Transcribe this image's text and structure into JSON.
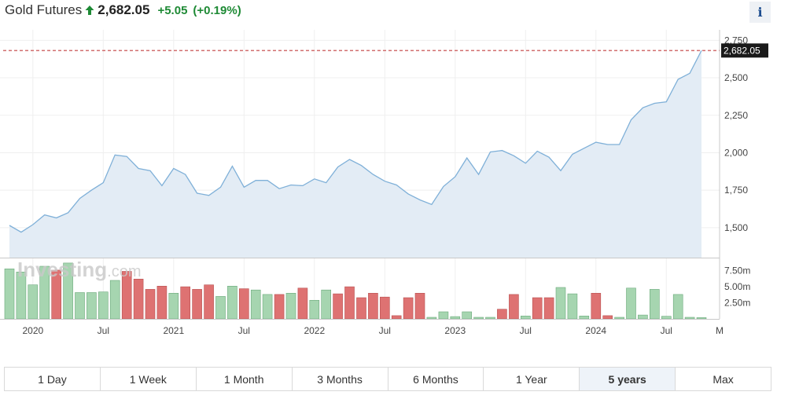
{
  "header": {
    "title": "Gold Futures",
    "price": "2,682.05",
    "change": "+5.05",
    "change_pct": "(+0.19%)",
    "info_icon_text": "i",
    "colors": {
      "up": "#1e8a35",
      "text": "#333333"
    }
  },
  "watermark": "Investing",
  "watermark_suffix": ".com",
  "ranges": [
    "1 Day",
    "1 Week",
    "1 Month",
    "3 Months",
    "6 Months",
    "1 Year",
    "5 years",
    "Max"
  ],
  "active_range": "5 years",
  "chart_data": [
    {
      "type": "area",
      "name": "price",
      "current_price": 2682.05,
      "current_price_label": "2,682.05",
      "ylim": [
        1300,
        2820
      ],
      "yticks": [
        1500,
        1750,
        2000,
        2250,
        2500,
        2750
      ],
      "ytick_labels": [
        "1,500",
        "1,750",
        "2,000",
        "2,250",
        "2,500",
        "2,750"
      ],
      "x_start": "2019-11",
      "x_end": "2024-10",
      "x_tick_labels": [
        {
          "label": "2020",
          "x": "2020-01"
        },
        {
          "label": "Jul",
          "x": "2020-07"
        },
        {
          "label": "2021",
          "x": "2021-01"
        },
        {
          "label": "Jul",
          "x": "2021-07"
        },
        {
          "label": "2022",
          "x": "2022-01"
        },
        {
          "label": "Jul",
          "x": "2022-07"
        },
        {
          "label": "2023",
          "x": "2023-01"
        },
        {
          "label": "Jul",
          "x": "2023-07"
        },
        {
          "label": "2024",
          "x": "2024-01"
        },
        {
          "label": "Jul",
          "x": "2024-07"
        },
        {
          "label": "M",
          "x": "2024-10"
        }
      ],
      "dates": [
        "2019-11",
        "2019-12",
        "2020-01",
        "2020-02",
        "2020-03",
        "2020-04",
        "2020-05",
        "2020-06",
        "2020-07",
        "2020-08",
        "2020-09",
        "2020-10",
        "2020-11",
        "2020-12",
        "2021-01",
        "2021-02",
        "2021-03",
        "2021-04",
        "2021-05",
        "2021-06",
        "2021-07",
        "2021-08",
        "2021-09",
        "2021-10",
        "2021-11",
        "2021-12",
        "2022-01",
        "2022-02",
        "2022-03",
        "2022-04",
        "2022-05",
        "2022-06",
        "2022-07",
        "2022-08",
        "2022-09",
        "2022-10",
        "2022-11",
        "2022-12",
        "2023-01",
        "2023-02",
        "2023-03",
        "2023-04",
        "2023-05",
        "2023-06",
        "2023-07",
        "2023-08",
        "2023-09",
        "2023-10",
        "2023-11",
        "2023-12",
        "2024-01",
        "2024-02",
        "2024-03",
        "2024-04",
        "2024-05",
        "2024-06",
        "2024-07",
        "2024-08",
        "2024-09",
        "2024-10"
      ],
      "values": [
        1515,
        1470,
        1520,
        1585,
        1565,
        1600,
        1695,
        1750,
        1800,
        1985,
        1975,
        1895,
        1880,
        1780,
        1895,
        1855,
        1730,
        1715,
        1770,
        1910,
        1770,
        1815,
        1815,
        1760,
        1785,
        1780,
        1825,
        1800,
        1905,
        1955,
        1915,
        1855,
        1810,
        1785,
        1725,
        1685,
        1655,
        1775,
        1840,
        1965,
        1855,
        2005,
        2015,
        1980,
        1930,
        2010,
        1970,
        1880,
        1990,
        2030,
        2070,
        2055,
        2055,
        2220,
        2300,
        2330,
        2340,
        2490,
        2530,
        2682
      ]
    },
    {
      "type": "bar",
      "name": "volume",
      "ylim": [
        0,
        9.3
      ],
      "yticks": [
        2.5,
        5.0,
        7.5
      ],
      "ytick_labels": [
        "2.50m",
        "5.00m",
        "7.50m"
      ],
      "unit": "m",
      "colors": {
        "up": "#a6d5b0",
        "down": "#de7272"
      },
      "dates": [
        "2019-11",
        "2019-12",
        "2020-01",
        "2020-02",
        "2020-03",
        "2020-04",
        "2020-05",
        "2020-06",
        "2020-07",
        "2020-08",
        "2020-09",
        "2020-10",
        "2020-11",
        "2020-12",
        "2021-01",
        "2021-02",
        "2021-03",
        "2021-04",
        "2021-05",
        "2021-06",
        "2021-07",
        "2021-08",
        "2021-09",
        "2021-10",
        "2021-11",
        "2021-12",
        "2022-01",
        "2022-02",
        "2022-03",
        "2022-04",
        "2022-05",
        "2022-06",
        "2022-07",
        "2022-08",
        "2022-09",
        "2022-10",
        "2022-11",
        "2022-12",
        "2023-01",
        "2023-02",
        "2023-03",
        "2023-04",
        "2023-05",
        "2023-06",
        "2023-07",
        "2023-08",
        "2023-09",
        "2023-10",
        "2023-11",
        "2023-12",
        "2024-01",
        "2024-02",
        "2024-03",
        "2024-04",
        "2024-05",
        "2024-06",
        "2024-07",
        "2024-08",
        "2024-09",
        "2024-10"
      ],
      "values": [
        7.8,
        7.3,
        5.3,
        8.2,
        7.6,
        8.7,
        4.1,
        4.1,
        4.2,
        6.0,
        7.4,
        6.2,
        4.6,
        5.1,
        4.0,
        5.0,
        4.6,
        5.3,
        3.5,
        5.1,
        4.7,
        4.5,
        3.8,
        3.8,
        4.0,
        4.8,
        2.9,
        4.5,
        3.9,
        5.0,
        3.3,
        4.0,
        3.4,
        0.5,
        3.3,
        4.0,
        0.25,
        1.1,
        0.35,
        1.1,
        0.25,
        0.25,
        1.5,
        3.8,
        0.45,
        3.3,
        3.3,
        4.9,
        3.9,
        0.45,
        4.0,
        0.5,
        0.25,
        4.8,
        0.6,
        4.6,
        0.4,
        3.8,
        0.25,
        0.2
      ],
      "direction": [
        "up",
        "up",
        "up",
        "up",
        "down",
        "up",
        "up",
        "up",
        "up",
        "up",
        "down",
        "down",
        "down",
        "down",
        "up",
        "down",
        "down",
        "down",
        "up",
        "up",
        "down",
        "up",
        "up",
        "down",
        "up",
        "down",
        "up",
        "up",
        "down",
        "down",
        "down",
        "down",
        "down",
        "down",
        "down",
        "down",
        "up",
        "up",
        "up",
        "up",
        "up",
        "up",
        "down",
        "down",
        "up",
        "down",
        "down",
        "up",
        "up",
        "up",
        "down",
        "down",
        "up",
        "up",
        "up",
        "up",
        "up",
        "up",
        "up",
        "up"
      ]
    }
  ]
}
